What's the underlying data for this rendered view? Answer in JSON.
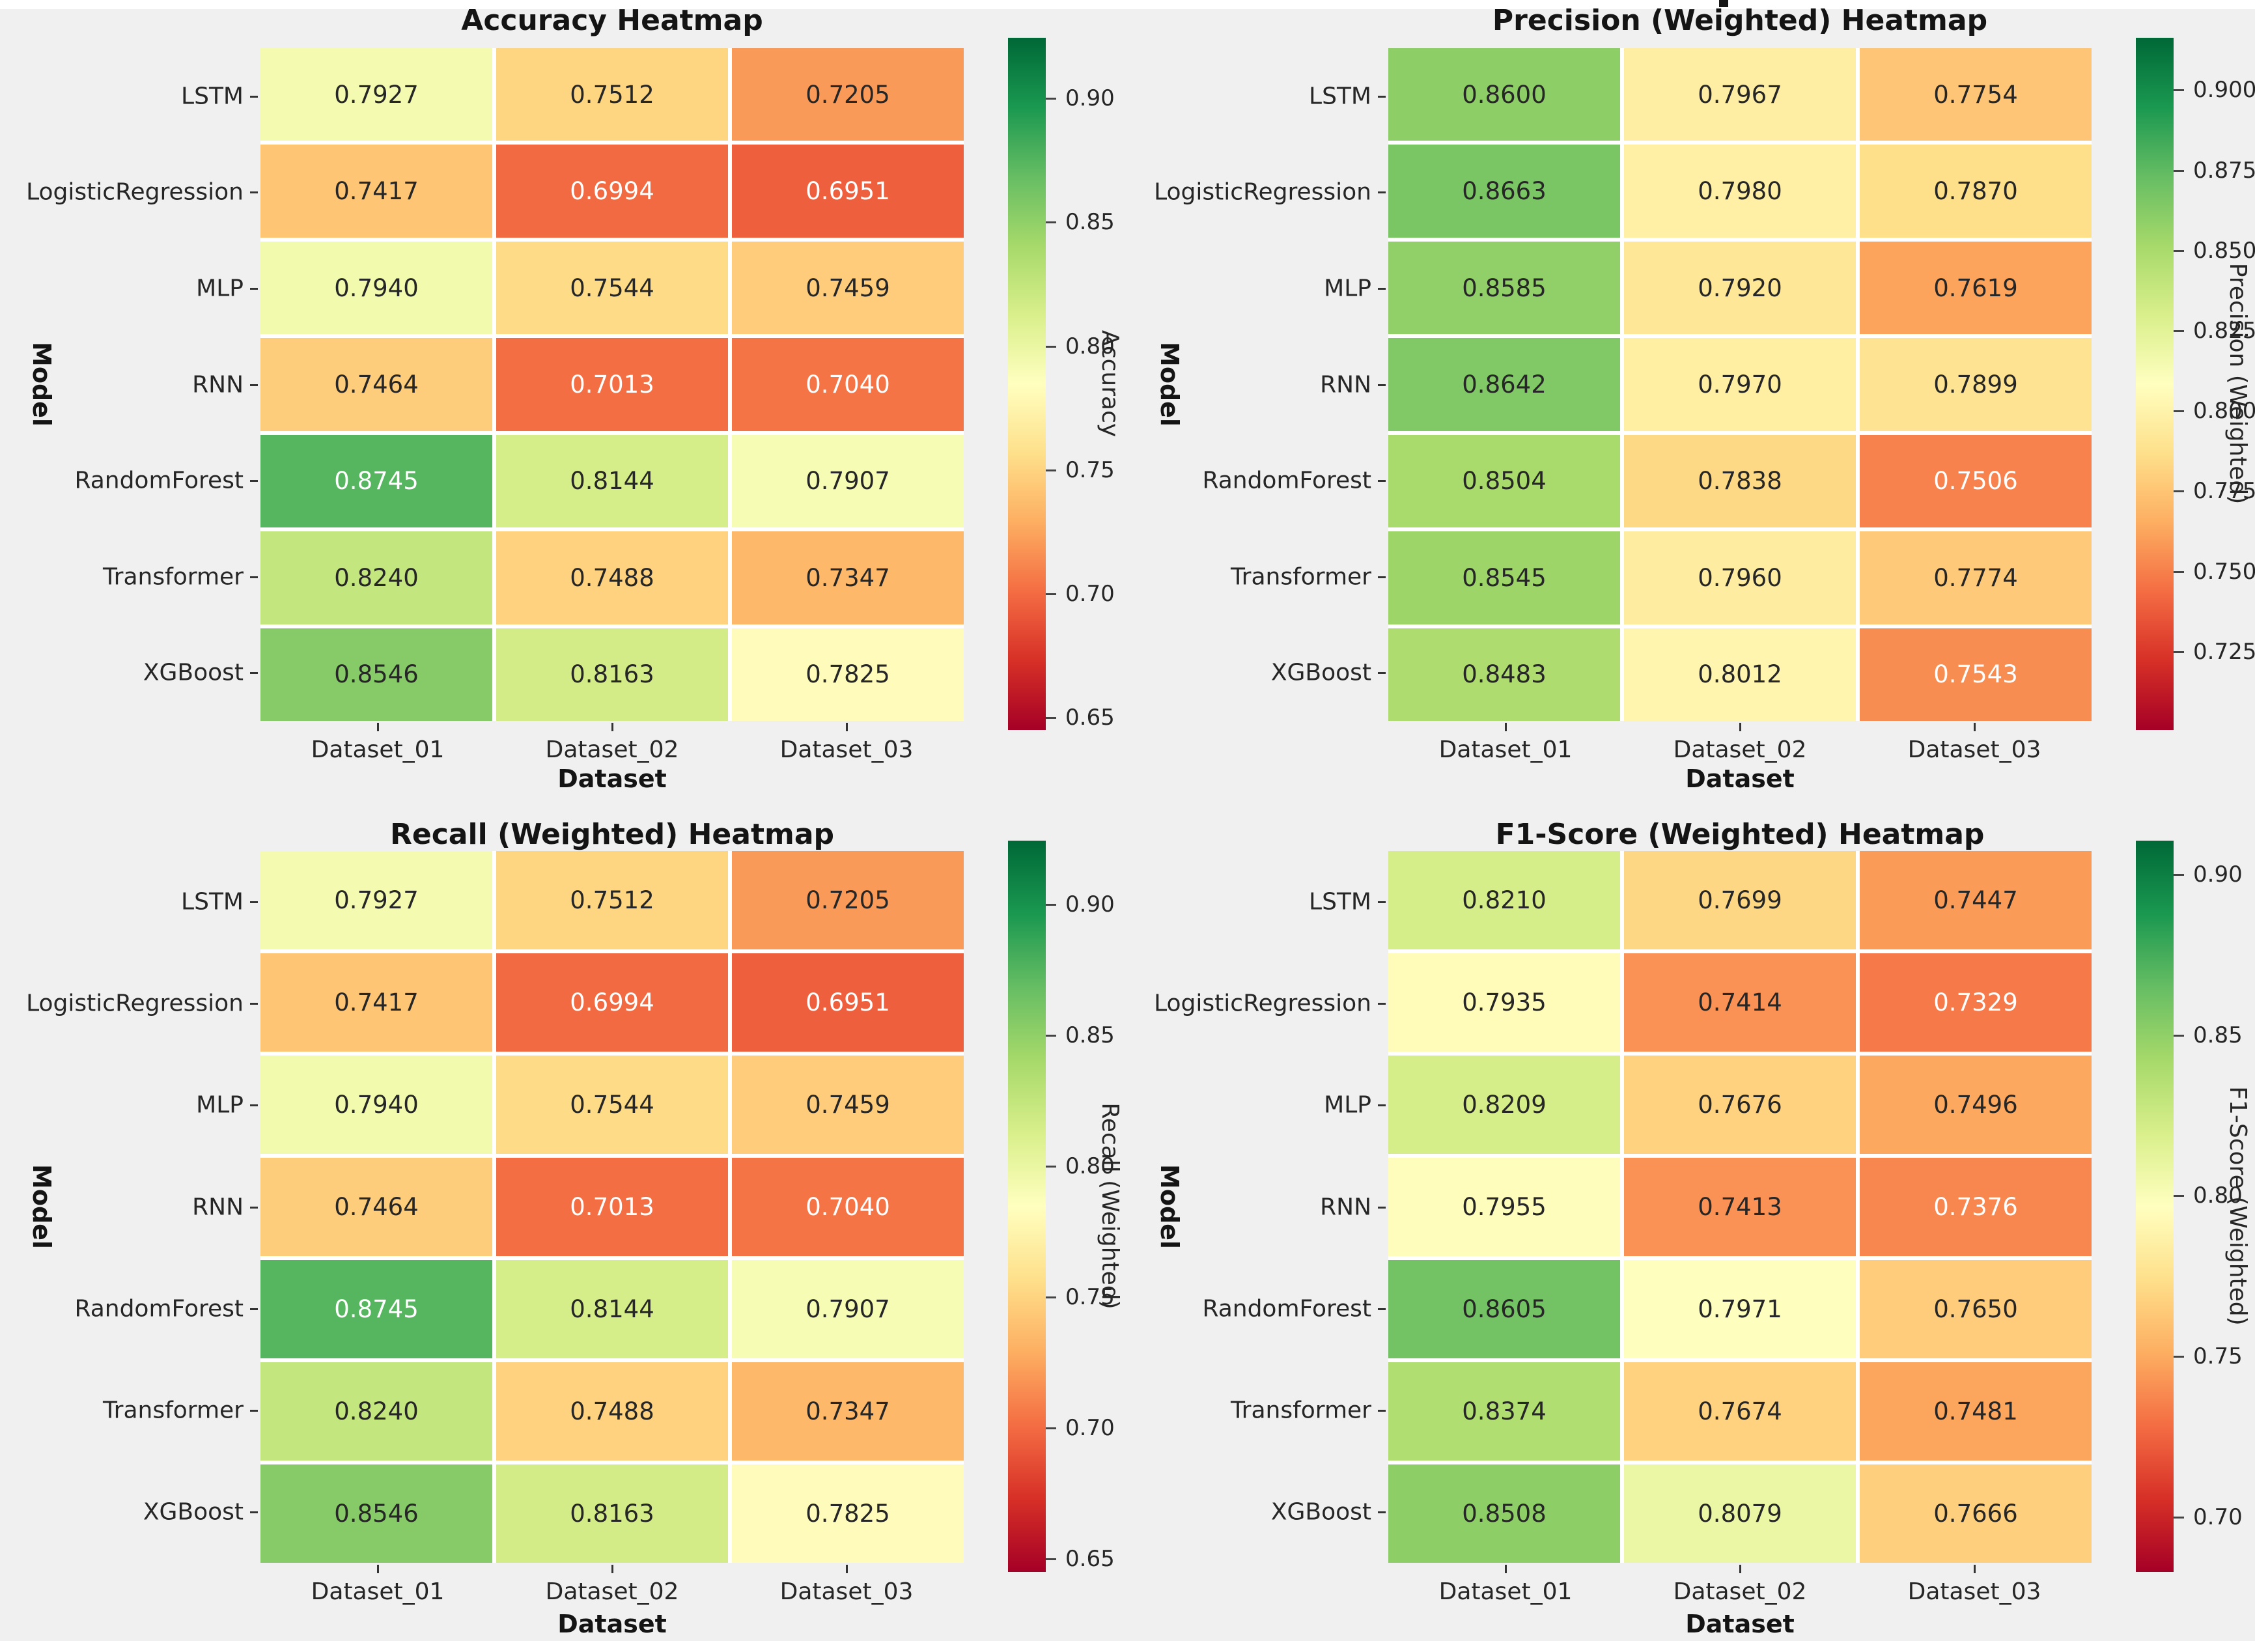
{
  "colors": {
    "figure_background": "#f0f0f0",
    "page_background": "#ffffff",
    "cell_gridline": "#ffffff",
    "annotation_dark": "#262626",
    "annotation_light": "#ffffff"
  },
  "chart_data": [
    {
      "type": "heatmap",
      "title": "Accuracy Heatmap",
      "xlabel": "Dataset",
      "ylabel": "Model",
      "rows": [
        "LSTM",
        "LogisticRegression",
        "MLP",
        "RNN",
        "RandomForest",
        "Transformer",
        "XGBoost"
      ],
      "columns": [
        "Dataset_01",
        "Dataset_02",
        "Dataset_03"
      ],
      "values": [
        [
          0.7927,
          0.7512,
          0.7205
        ],
        [
          0.7417,
          0.6994,
          0.6951
        ],
        [
          0.794,
          0.7544,
          0.7459
        ],
        [
          0.7464,
          0.7013,
          0.704
        ],
        [
          0.8745,
          0.8144,
          0.7907
        ],
        [
          0.824,
          0.7488,
          0.7347
        ],
        [
          0.8546,
          0.8163,
          0.7825
        ]
      ],
      "colormap": "RdYlGn",
      "vlim": [
        0.6451,
        0.9245
      ],
      "colorbar_label": "Accuracy",
      "colorbar_ticks": [
        "0.90",
        "0.85",
        "0.80",
        "0.75",
        "0.70",
        "0.65"
      ],
      "legend_position": "right-colorbar",
      "grid": false
    },
    {
      "type": "heatmap",
      "title": "Precision (Weighted) Heatmap",
      "xlabel": "Dataset",
      "ylabel": "Model",
      "rows": [
        "LSTM",
        "LogisticRegression",
        "MLP",
        "RNN",
        "RandomForest",
        "Transformer",
        "XGBoost"
      ],
      "columns": [
        "Dataset_01",
        "Dataset_02",
        "Dataset_03"
      ],
      "values": [
        [
          0.86,
          0.7967,
          0.7754
        ],
        [
          0.8663,
          0.798,
          0.787
        ],
        [
          0.8585,
          0.792,
          0.7619
        ],
        [
          0.8642,
          0.797,
          0.7899
        ],
        [
          0.8504,
          0.7838,
          0.7506
        ],
        [
          0.8545,
          0.796,
          0.7774
        ],
        [
          0.8483,
          0.8012,
          0.7543
        ]
      ],
      "colormap": "RdYlGn",
      "vlim": [
        0.7006,
        0.9163
      ],
      "colorbar_label": "Precision (Weighted)",
      "colorbar_ticks": [
        "0.900",
        "0.875",
        "0.850",
        "0.825",
        "0.800",
        "0.775",
        "0.750",
        "0.725"
      ],
      "legend_position": "right-colorbar",
      "grid": false
    },
    {
      "type": "heatmap",
      "title": "Recall (Weighted) Heatmap",
      "xlabel": "Dataset",
      "ylabel": "Model",
      "rows": [
        "LSTM",
        "LogisticRegression",
        "MLP",
        "RNN",
        "RandomForest",
        "Transformer",
        "XGBoost"
      ],
      "columns": [
        "Dataset_01",
        "Dataset_02",
        "Dataset_03"
      ],
      "values": [
        [
          0.7927,
          0.7512,
          0.7205
        ],
        [
          0.7417,
          0.6994,
          0.6951
        ],
        [
          0.794,
          0.7544,
          0.7459
        ],
        [
          0.7464,
          0.7013,
          0.704
        ],
        [
          0.8745,
          0.8144,
          0.7907
        ],
        [
          0.824,
          0.7488,
          0.7347
        ],
        [
          0.8546,
          0.8163,
          0.7825
        ]
      ],
      "colormap": "RdYlGn",
      "vlim": [
        0.6451,
        0.9245
      ],
      "colorbar_label": "Recall (Weighted)",
      "colorbar_ticks": [
        "0.90",
        "0.85",
        "0.80",
        "0.75",
        "0.70",
        "0.65"
      ],
      "legend_position": "right-colorbar",
      "grid": false
    },
    {
      "type": "heatmap",
      "title": "F1-Score (Weighted) Heatmap",
      "xlabel": "Dataset",
      "ylabel": "Model",
      "rows": [
        "LSTM",
        "LogisticRegression",
        "MLP",
        "RNN",
        "RandomForest",
        "Transformer",
        "XGBoost"
      ],
      "columns": [
        "Dataset_01",
        "Dataset_02",
        "Dataset_03"
      ],
      "values": [
        [
          0.821,
          0.7699,
          0.7447
        ],
        [
          0.7935,
          0.7414,
          0.7329
        ],
        [
          0.8209,
          0.7676,
          0.7496
        ],
        [
          0.7955,
          0.7413,
          0.7376
        ],
        [
          0.8605,
          0.7971,
          0.765
        ],
        [
          0.8374,
          0.7674,
          0.7481
        ],
        [
          0.8508,
          0.8079,
          0.7666
        ]
      ],
      "colormap": "RdYlGn",
      "vlim": [
        0.6829,
        0.9105
      ],
      "colorbar_label": "F1-Score (Weighted)",
      "colorbar_ticks": [
        "0.90",
        "0.85",
        "0.80",
        "0.75",
        "0.70"
      ],
      "legend_position": "right-colorbar",
      "grid": false
    }
  ]
}
